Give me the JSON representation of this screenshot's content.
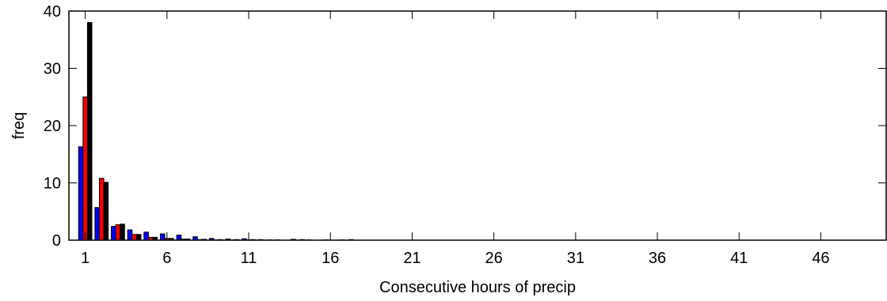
{
  "chart_data": {
    "type": "bar",
    "xlabel": "Consecutive hours of precip",
    "ylabel": "freq",
    "xlim": [
      0,
      50
    ],
    "ylim": [
      0,
      40
    ],
    "xticks": [
      1,
      6,
      11,
      16,
      21,
      26,
      31,
      36,
      41,
      46
    ],
    "yticks": [
      0,
      10,
      20,
      30,
      40
    ],
    "grid": false,
    "x": [
      1,
      2,
      3,
      4,
      5,
      6,
      7,
      8,
      9,
      10,
      11,
      12,
      13,
      14,
      15,
      16,
      17
    ],
    "series": [
      {
        "color": "#0000ff",
        "values": [
          16.3,
          5.7,
          2.4,
          1.8,
          1.4,
          1.1,
          0.9,
          0.6,
          0.3,
          0.2,
          0.25,
          0.1,
          0.05,
          0.15,
          0.05,
          0.05,
          0.05
        ]
      },
      {
        "color": "#ff0000",
        "values": [
          25.0,
          10.8,
          2.7,
          1.0,
          0.5,
          0.3,
          0.2,
          0.1,
          0.05,
          0.05,
          0.05,
          0.0,
          0.0,
          0.0,
          0.0,
          0.0,
          0.0
        ]
      },
      {
        "color": "#000000",
        "values": [
          38.0,
          10.1,
          2.8,
          1.0,
          0.5,
          0.3,
          0.2,
          0.15,
          0.1,
          0.1,
          0.1,
          0.05,
          0.0,
          0.1,
          0.0,
          0.0,
          0.1
        ]
      }
    ]
  }
}
